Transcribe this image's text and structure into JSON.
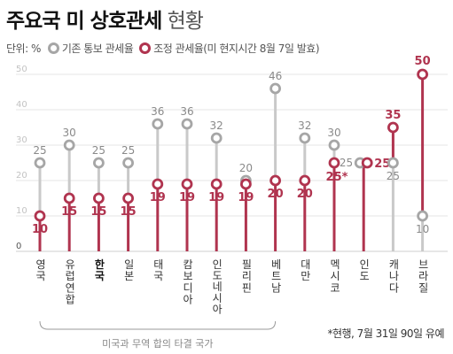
{
  "title": {
    "bold": "주요국 미 상호관세",
    "light": "현황"
  },
  "legend": {
    "unit": "단위: %",
    "existing": "기존 통보 관세율",
    "adjusted": "조정 관세율(미 현지시간 8월 7일 발효)"
  },
  "colors": {
    "existing": "#a6a6a6",
    "adjusted": "#b0344f",
    "line": "#c9c9c9",
    "stem": "#b0344f"
  },
  "footnote": "*현행, 7월 31일 90일 유예",
  "group_label": "미국과 무역 합의 타결 국가",
  "chart_data": {
    "type": "dumbbell",
    "title": "주요국 미 상호관세 현황",
    "ylabel": "단위: %",
    "ylim": [
      0,
      50
    ],
    "yticks": [
      0,
      10,
      20,
      30,
      40,
      50
    ],
    "grid": true,
    "legend_position": "top-left",
    "categories": [
      "영국",
      "유럽연합",
      "한국",
      "일본",
      "태국",
      "캄보디아",
      "인도네시아",
      "필리핀",
      "베트남",
      "대만",
      "멕시코",
      "인도",
      "캐나다",
      "브라질"
    ],
    "highlight_category": "한국",
    "series": [
      {
        "name": "기존 통보 관세율",
        "values": [
          25,
          30,
          25,
          25,
          36,
          36,
          32,
          20,
          46,
          32,
          30,
          25,
          25,
          10
        ]
      },
      {
        "name": "조정 관세율(미 현지시간 8월 7일 발효)",
        "values": [
          10,
          15,
          15,
          15,
          19,
          19,
          19,
          19,
          20,
          20,
          25,
          25,
          35,
          50
        ]
      }
    ],
    "adjusted_labels": [
      "10",
      "15",
      "15",
      "15",
      "19",
      "19",
      "19",
      "19",
      "20",
      "20",
      "25*",
      "25",
      "35",
      "50"
    ],
    "existing_labels": [
      "25",
      "30",
      "25",
      "25",
      "36",
      "36",
      "32",
      "20",
      "46",
      "32",
      "30",
      "25",
      "25",
      "10"
    ],
    "group": {
      "label": "미국과 무역 합의 타결 국가",
      "from": 0,
      "to": 8
    }
  }
}
